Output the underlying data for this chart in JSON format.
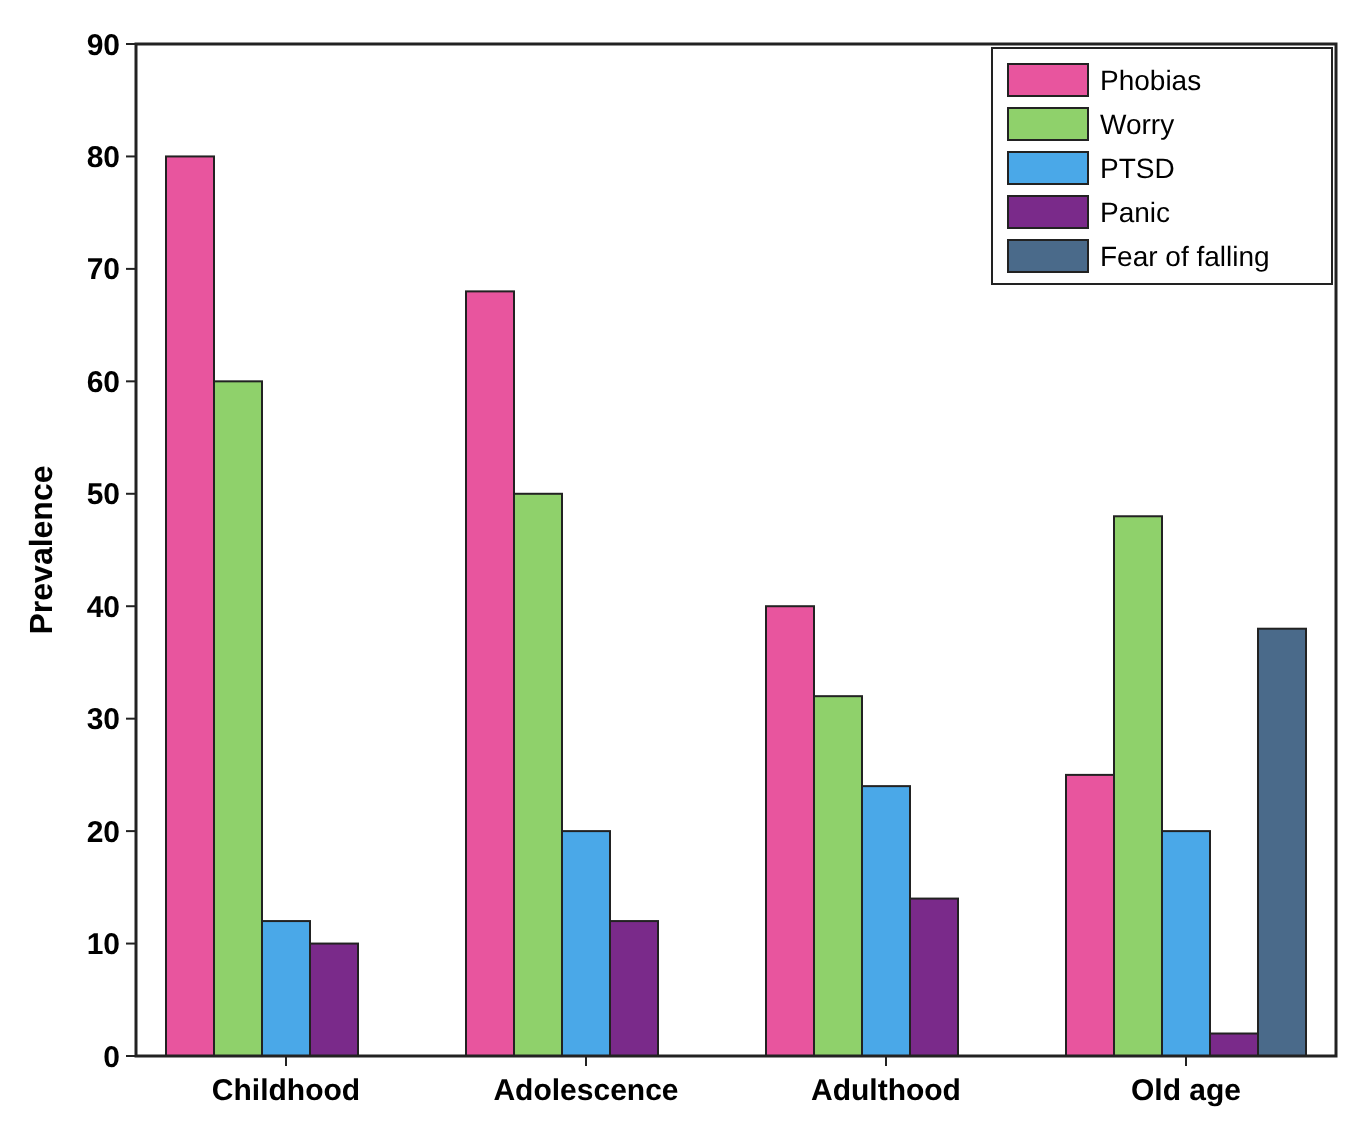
{
  "chart_data": {
    "type": "bar",
    "ylabel": "Prevalence",
    "categories": [
      "Childhood",
      "Adolescence",
      "Adulthood",
      "Old age"
    ],
    "series": [
      {
        "name": "Phobias",
        "color": "#e8559e",
        "values": [
          80,
          68,
          40,
          25
        ]
      },
      {
        "name": "Worry",
        "color": "#8fd16b",
        "values": [
          60,
          50,
          32,
          48
        ]
      },
      {
        "name": "PTSD",
        "color": "#4aa8e8",
        "values": [
          12,
          20,
          24,
          20
        ]
      },
      {
        "name": "Panic",
        "color": "#7a2a8a",
        "values": [
          10,
          12,
          14,
          2
        ]
      },
      {
        "name": "Fear of falling",
        "color": "#4a6a8a",
        "values": [
          null,
          null,
          null,
          38
        ]
      }
    ],
    "ylim": [
      0,
      90
    ],
    "yticks": [
      0,
      10,
      20,
      30,
      40,
      50,
      60,
      70,
      80,
      90
    ],
    "legend": "top right"
  }
}
